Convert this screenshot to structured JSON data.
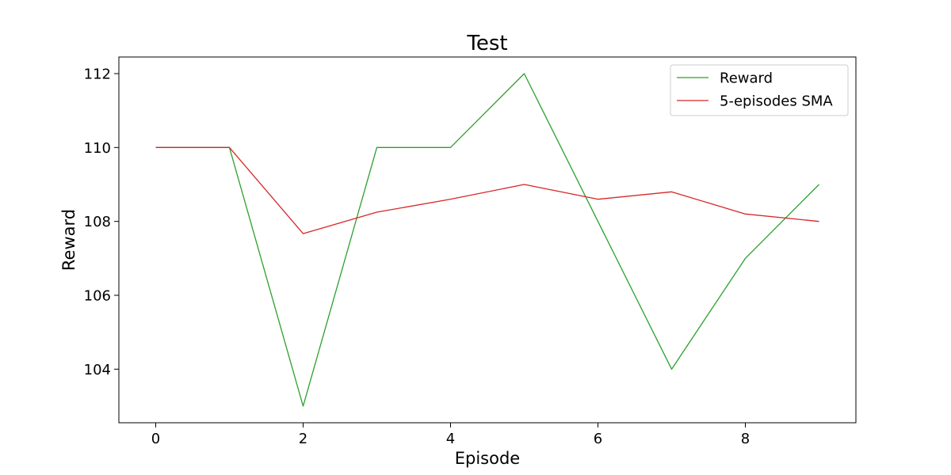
{
  "chart_data": {
    "type": "line",
    "title": "Test",
    "xlabel": "Episode",
    "ylabel": "Reward",
    "xlim": [
      -0.5,
      9.5
    ],
    "ylim": [
      102.55,
      112.45
    ],
    "xticks": [
      0,
      2,
      4,
      6,
      8
    ],
    "yticks": [
      104,
      106,
      108,
      110,
      112
    ],
    "grid": false,
    "legend_position": "top-right",
    "x": [
      0,
      1,
      2,
      3,
      4,
      5,
      6,
      7,
      8,
      9
    ],
    "series": [
      {
        "name": "Reward",
        "color": "#2ca02c",
        "values": [
          110,
          110,
          103,
          110,
          110,
          112,
          108,
          104,
          107,
          109
        ]
      },
      {
        "name": "5-episodes SMA",
        "color": "#d62728",
        "values": [
          110,
          110,
          107.67,
          108.25,
          108.6,
          109,
          108.6,
          108.8,
          108.2,
          108
        ]
      }
    ]
  }
}
